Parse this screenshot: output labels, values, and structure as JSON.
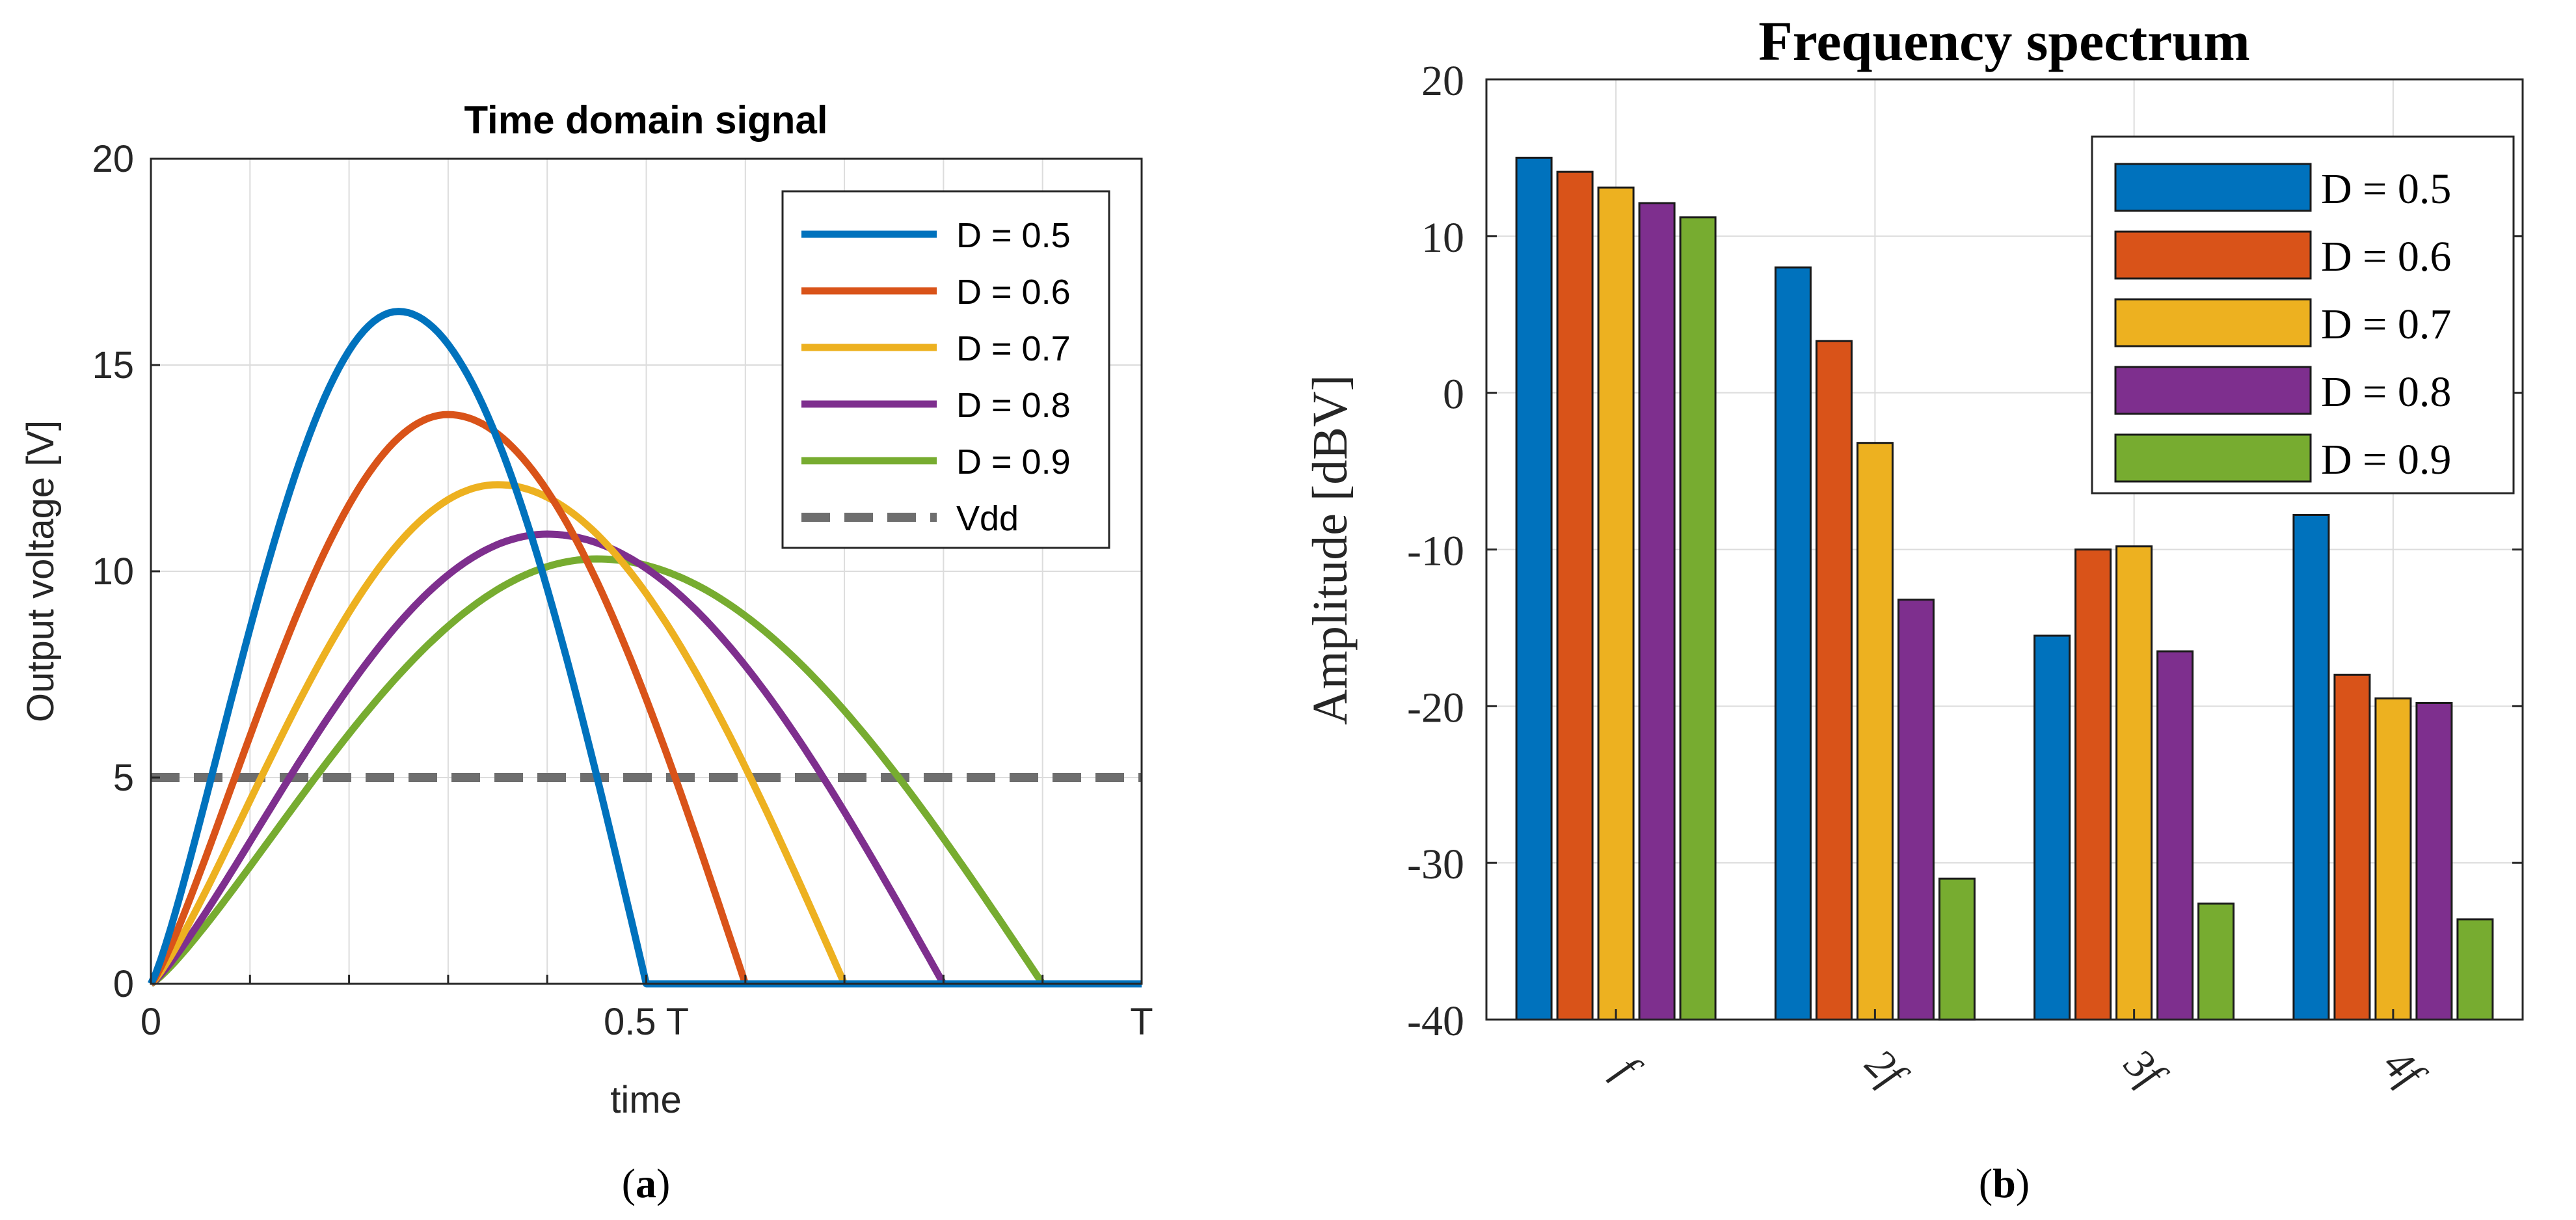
{
  "colors": {
    "D05": "#0072BD",
    "D06": "#D95319",
    "D07": "#EDB120",
    "D08": "#7E2F8E",
    "D09": "#77AC30",
    "vdd": "#6E6E6E",
    "grid": "#DCDCDC"
  },
  "chart_data": [
    {
      "type": "line",
      "title": "Time domain signal",
      "xlabel": "time",
      "ylabel": "Output voltage [V]",
      "xlim": [
        0,
        1
      ],
      "ylim": [
        0,
        20
      ],
      "xticks": [
        0,
        0.5,
        1
      ],
      "xtick_labels": [
        "0",
        "0.5 T",
        "T"
      ],
      "yticks": [
        0,
        5,
        10,
        15,
        20
      ],
      "ytick_labels": [
        "0",
        "5",
        "10",
        "15",
        "20"
      ],
      "grid": true,
      "legend_position": "top-right",
      "panel_label": "a",
      "series": [
        {
          "name": "D = 0.5",
          "color_key": "D05",
          "duty": 0.5,
          "peak_time": 0.25,
          "peak": 16.3,
          "end": 0.5
        },
        {
          "name": "D = 0.6",
          "color_key": "D06",
          "duty": 0.6,
          "peak_time": 0.3,
          "peak": 13.8,
          "end": 0.6
        },
        {
          "name": "D = 0.7",
          "color_key": "D07",
          "duty": 0.7,
          "peak_time": 0.35,
          "peak": 12.1,
          "end": 0.7
        },
        {
          "name": "D = 0.8",
          "color_key": "D08",
          "duty": 0.8,
          "peak_time": 0.4,
          "peak": 10.9,
          "end": 0.8
        },
        {
          "name": "D = 0.9",
          "color_key": "D09",
          "duty": 0.9,
          "peak_time": 0.45,
          "peak": 10.3,
          "end": 0.9
        }
      ],
      "reference_line": {
        "name": "Vdd",
        "value": 5,
        "style": "dashed",
        "color_key": "vdd"
      }
    },
    {
      "type": "bar",
      "title": "Frequency spectrum",
      "xlabel": "",
      "ylabel": "Amplitude [dBV]",
      "categories": [
        "f",
        "2f",
        "3f",
        "4f"
      ],
      "ylim": [
        -40,
        20
      ],
      "yticks": [
        -40,
        -30,
        -20,
        -10,
        0,
        10,
        20
      ],
      "ytick_labels": [
        "-40",
        "-30",
        "-20",
        "-10",
        "0",
        "10",
        "20"
      ],
      "grid": true,
      "legend_position": "top-right",
      "panel_label": "b",
      "series": [
        {
          "name": "D = 0.5",
          "color_key": "D05",
          "values": [
            15.0,
            8.0,
            -15.5,
            -7.8
          ]
        },
        {
          "name": "D = 0.6",
          "color_key": "D06",
          "values": [
            14.1,
            3.3,
            -10.0,
            -18.0
          ]
        },
        {
          "name": "D = 0.7",
          "color_key": "D07",
          "values": [
            13.1,
            -3.2,
            -9.8,
            -19.5
          ]
        },
        {
          "name": "D = 0.8",
          "color_key": "D08",
          "values": [
            12.1,
            -13.2,
            -16.5,
            -19.8
          ]
        },
        {
          "name": "D = 0.9",
          "color_key": "D09",
          "values": [
            11.2,
            -31.0,
            -32.6,
            -33.6
          ]
        }
      ]
    }
  ]
}
